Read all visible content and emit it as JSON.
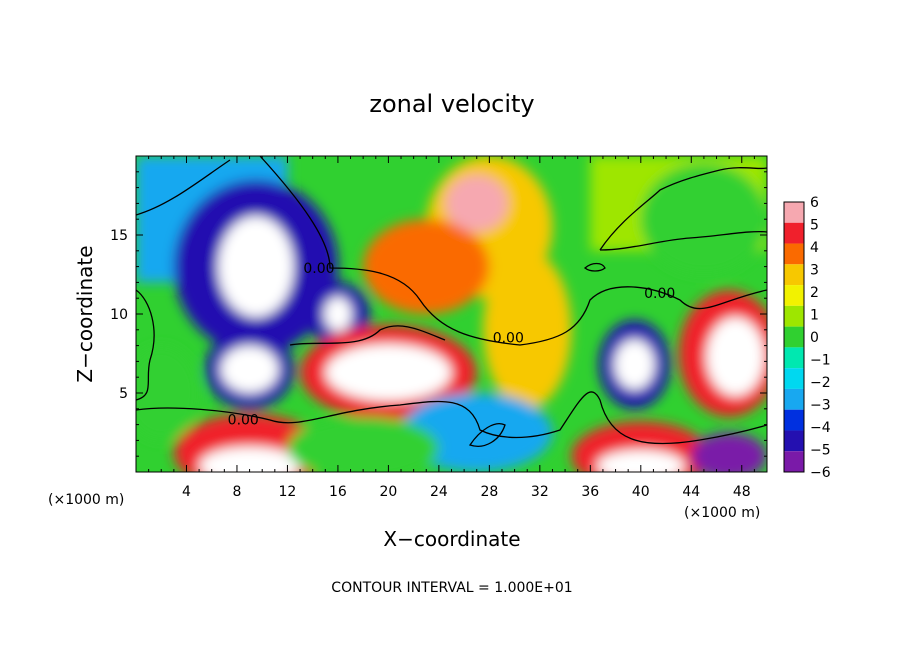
{
  "chart_data": {
    "type": "heatmap",
    "title": "zonal velocity",
    "xlabel": "X−coordinate",
    "ylabel": "Z−coordinate",
    "x_unit_left": "(×1000 m)",
    "x_unit_right": "(×1000 m)",
    "footer": "CONTOUR INTERVAL = 1.000E+01",
    "xlim": [
      0,
      50
    ],
    "ylim": [
      0,
      20
    ],
    "x_ticks": [
      4,
      8,
      12,
      16,
      20,
      24,
      28,
      32,
      36,
      40,
      44,
      48
    ],
    "y_ticks": [
      5,
      10,
      15
    ],
    "colorbar": {
      "levels": [
        6,
        5,
        4,
        3,
        2,
        1,
        0,
        -1,
        -2,
        -3,
        -4,
        -5,
        -6
      ],
      "labels": [
        "6",
        "5",
        "4",
        "3",
        "2",
        "1",
        "0",
        "−1",
        "−2",
        "−3",
        "−4",
        "−5",
        "−6"
      ],
      "colors": [
        "#f6a8b0",
        "#f0202c",
        "#fa6a00",
        "#f7c800",
        "#f2f200",
        "#9ee600",
        "#30d030",
        "#00e8b0",
        "#00d8f0",
        "#18a8f0",
        "#0030e0",
        "#2410b0",
        "#7a1aa8"
      ]
    },
    "contour_labels": [
      {
        "text": "0.00",
        "x": 14.5,
        "y": 12.6
      },
      {
        "text": "0.00",
        "x": 41.5,
        "y": 11.0
      },
      {
        "text": "0.00",
        "x": 29.5,
        "y": 8.2
      },
      {
        "text": "0.00",
        "x": 8.5,
        "y": 3.0
      }
    ],
    "features": [
      {
        "kind": "blob",
        "cx": 28,
        "cy": 15.5,
        "rx": 5,
        "ry": 4.5,
        "value": 3.5
      },
      {
        "kind": "blob",
        "cx": 27,
        "cy": 17,
        "rx": 2.5,
        "ry": 1.8,
        "value": 6
      },
      {
        "kind": "blob",
        "cx": 23,
        "cy": 13,
        "rx": 5,
        "ry": 3,
        "value": 4
      },
      {
        "kind": "blob",
        "cx": 31,
        "cy": 9,
        "rx": 3.5,
        "ry": 5,
        "value": 3
      },
      {
        "kind": "blob",
        "cx": 9.5,
        "cy": 13,
        "rx": 6.5,
        "ry": 5.5,
        "value": -4.5
      },
      {
        "kind": "blob",
        "cx": 9.5,
        "cy": 13,
        "rx": 3,
        "ry": 3.2,
        "value": -7
      },
      {
        "kind": "blob",
        "cx": 9,
        "cy": 6.5,
        "rx": 3.5,
        "ry": 2.5,
        "value": -5
      },
      {
        "kind": "blob",
        "cx": 9,
        "cy": 6.5,
        "rx": 2.3,
        "ry": 1.5,
        "value": -7
      },
      {
        "kind": "blob",
        "cx": 16,
        "cy": 10,
        "rx": 2.5,
        "ry": 2,
        "value": -5
      },
      {
        "kind": "blob",
        "cx": 16,
        "cy": 10,
        "rx": 1.1,
        "ry": 1.1,
        "value": -7
      },
      {
        "kind": "blob",
        "cx": 20,
        "cy": 6.3,
        "rx": 7,
        "ry": 3,
        "value": 5
      },
      {
        "kind": "blob",
        "cx": 20,
        "cy": 6.3,
        "rx": 5,
        "ry": 1.8,
        "value": 7
      },
      {
        "kind": "blob",
        "cx": 39.5,
        "cy": 6.8,
        "rx": 2.8,
        "ry": 2.8,
        "value": -5
      },
      {
        "kind": "blob",
        "cx": 39.5,
        "cy": 6.8,
        "rx": 1.6,
        "ry": 1.6,
        "value": -7
      },
      {
        "kind": "blob",
        "cx": 47,
        "cy": 7.5,
        "rx": 4,
        "ry": 4,
        "value": 5
      },
      {
        "kind": "blob",
        "cx": 47.5,
        "cy": 7.3,
        "rx": 2.3,
        "ry": 2.5,
        "value": 7
      },
      {
        "kind": "blob",
        "cx": 9,
        "cy": 1.2,
        "rx": 6,
        "ry": 2.5,
        "value": 5
      },
      {
        "kind": "blob",
        "cx": 9,
        "cy": 0.4,
        "rx": 4,
        "ry": 1.2,
        "value": 7
      },
      {
        "kind": "blob",
        "cx": 40,
        "cy": 1.0,
        "rx": 5.5,
        "ry": 2.2,
        "value": 5
      },
      {
        "kind": "blob",
        "cx": 40,
        "cy": 0.4,
        "rx": 3.5,
        "ry": 1.0,
        "value": 7
      },
      {
        "kind": "blob",
        "cx": 27,
        "cy": 2.5,
        "rx": 6,
        "ry": 2.5,
        "value": -3
      },
      {
        "kind": "blob",
        "cx": 45,
        "cy": 16,
        "rx": 5,
        "ry": 3.5,
        "value": 0.5
      },
      {
        "kind": "blob",
        "cx": 2,
        "cy": 5,
        "rx": 3,
        "ry": 3,
        "value": 0.5
      },
      {
        "kind": "blob",
        "cx": 18,
        "cy": 1.5,
        "rx": 6,
        "ry": 2,
        "value": 0.5
      },
      {
        "kind": "blob",
        "cx": 47,
        "cy": 1,
        "rx": 3,
        "ry": 1.5,
        "value": -6
      }
    ]
  }
}
